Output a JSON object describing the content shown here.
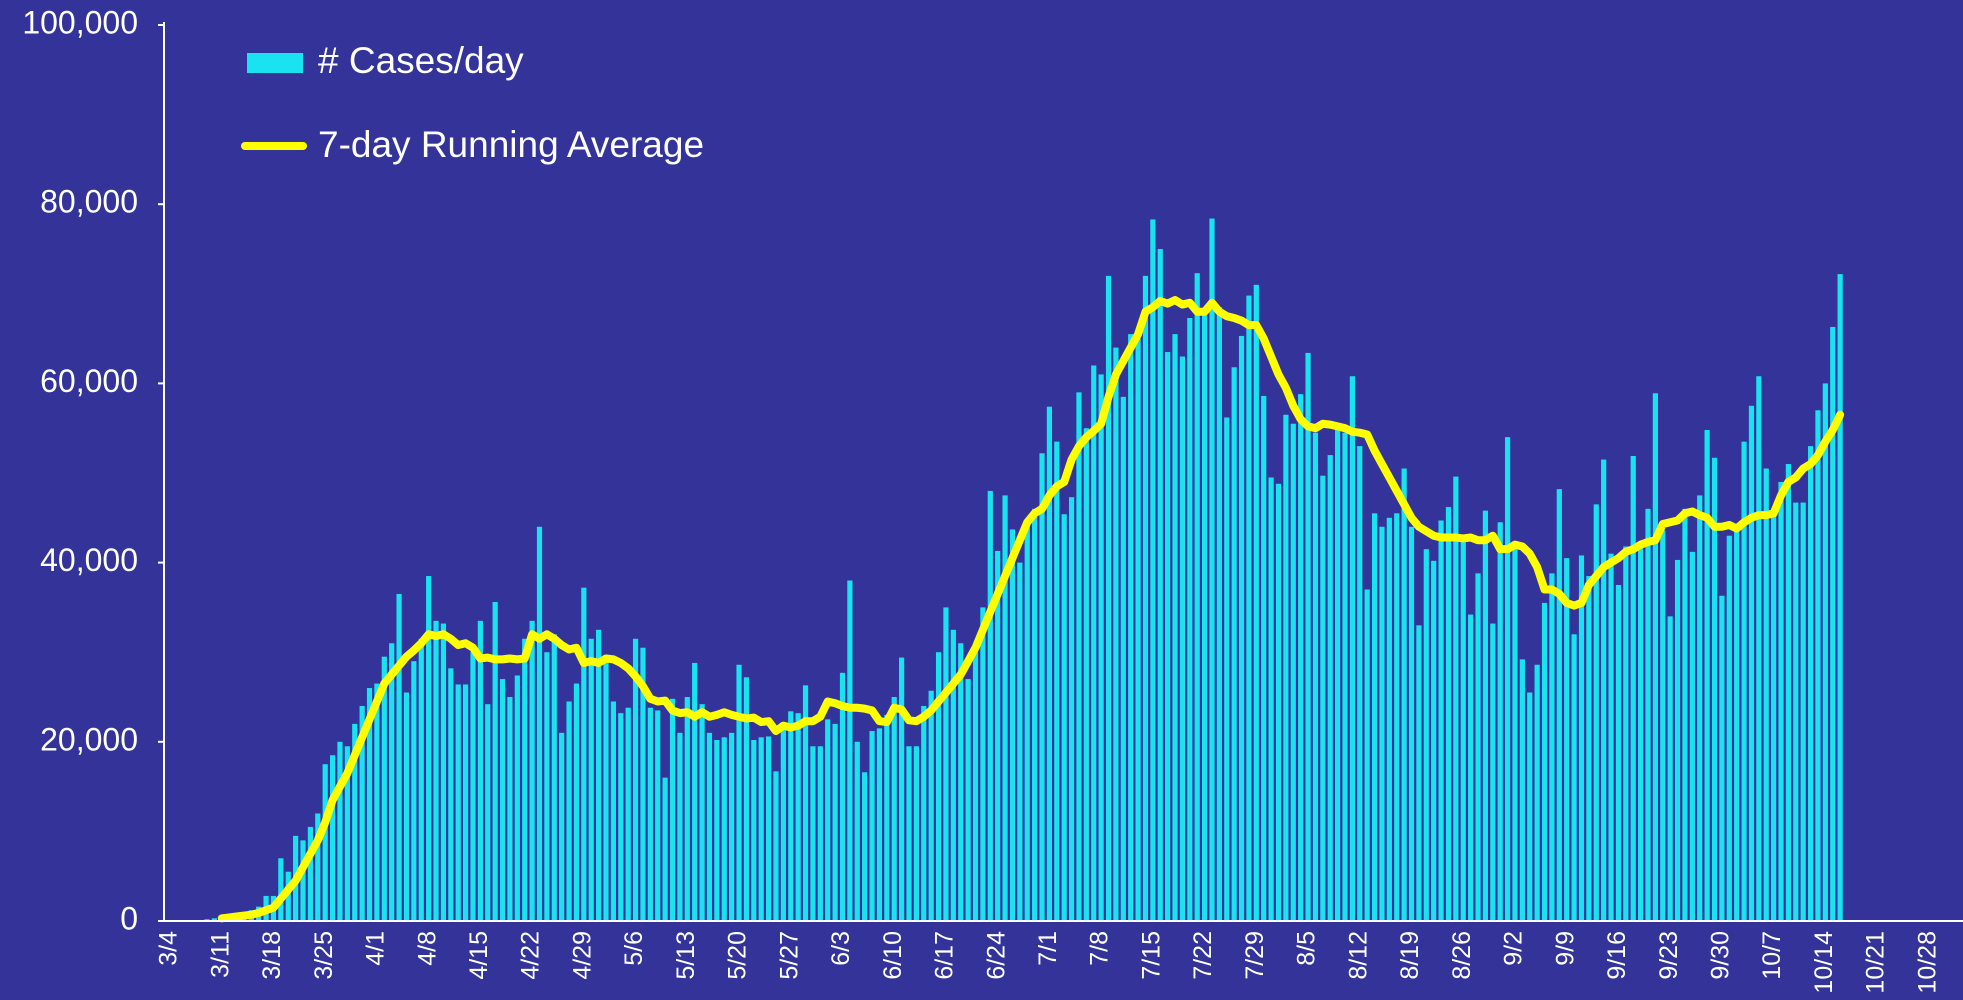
{
  "chart_data": {
    "type": "bar",
    "categories": [
      "3/4",
      null,
      null,
      null,
      null,
      null,
      null,
      "3/11",
      null,
      null,
      null,
      null,
      null,
      null,
      "3/18",
      null,
      null,
      null,
      null,
      null,
      null,
      "3/25",
      null,
      null,
      null,
      null,
      null,
      null,
      "4/1",
      null,
      null,
      null,
      null,
      null,
      null,
      "4/8",
      null,
      null,
      null,
      null,
      null,
      null,
      "4/15",
      null,
      null,
      null,
      null,
      null,
      null,
      "4/22",
      null,
      null,
      null,
      null,
      null,
      null,
      "4/29",
      null,
      null,
      null,
      null,
      null,
      null,
      "5/6",
      null,
      null,
      null,
      null,
      null,
      null,
      "5/13",
      null,
      null,
      null,
      null,
      null,
      null,
      "5/20",
      null,
      null,
      null,
      null,
      null,
      null,
      "5/27",
      null,
      null,
      null,
      null,
      null,
      null,
      "6/3",
      null,
      null,
      null,
      null,
      null,
      null,
      "6/10",
      null,
      null,
      null,
      null,
      null,
      null,
      "6/17",
      null,
      null,
      null,
      null,
      null,
      null,
      "6/24",
      null,
      null,
      null,
      null,
      null,
      null,
      "7/1",
      null,
      null,
      null,
      null,
      null,
      null,
      "7/8",
      null,
      null,
      null,
      null,
      null,
      null,
      "7/15",
      null,
      null,
      null,
      null,
      null,
      null,
      "7/22",
      null,
      null,
      null,
      null,
      null,
      null,
      "7/29",
      null,
      null,
      null,
      null,
      null,
      null,
      "8/5",
      null,
      null,
      null,
      null,
      null,
      null,
      "8/12",
      null,
      null,
      null,
      null,
      null,
      null,
      "8/19",
      null,
      null,
      null,
      null,
      null,
      null,
      "8/26",
      null,
      null,
      null,
      null,
      null,
      null,
      "9/2",
      null,
      null,
      null,
      null,
      null,
      null,
      "9/9",
      null,
      null,
      null,
      null,
      null,
      null,
      "9/16",
      null,
      null,
      null,
      null,
      null,
      null,
      "9/23",
      null,
      null,
      null,
      null,
      null,
      null,
      "9/30",
      null,
      null,
      null,
      null,
      null,
      null,
      "10/7",
      null,
      null,
      null,
      null,
      null,
      null,
      "10/14",
      null,
      null,
      null,
      null,
      null,
      null,
      "10/21",
      null,
      null,
      null,
      null,
      null,
      null,
      "10/28"
    ],
    "series": [
      {
        "name": "# Cases/day",
        "type": "bar",
        "color": "#19e3ef",
        "values": [
          0,
          0,
          0,
          0,
          100,
          200,
          300,
          400,
          500,
          600,
          900,
          1200,
          1600,
          2800,
          2800,
          7000,
          5500,
          9500,
          9000,
          10500,
          12000,
          17500,
          18500,
          20000,
          19500,
          22000,
          24000,
          26000,
          26500,
          29500,
          31000,
          36500,
          25500,
          29000,
          31500,
          38500,
          33500,
          33200,
          28200,
          26400,
          26400,
          30000,
          33500,
          24200,
          35600,
          27000,
          25000,
          27400,
          31500,
          33500,
          44000,
          30000,
          32000,
          21000,
          24500,
          26500,
          37200,
          31500,
          32500,
          29500,
          24500,
          23200,
          23800,
          31500,
          30500,
          23800,
          23500,
          16000,
          24800,
          21000,
          25000,
          28800,
          24200,
          21000,
          20200,
          20500,
          21000,
          28600,
          27200,
          20200,
          20500,
          20600,
          16700,
          21500,
          23400,
          23200,
          26300,
          19500,
          19500,
          22500,
          22000,
          27700,
          38000,
          20000,
          16600,
          21200,
          21500,
          23000,
          25000,
          29400,
          19500,
          19500,
          24000,
          25700,
          30000,
          35000,
          32500,
          31000,
          27000,
          30000,
          35000,
          48000,
          41300,
          47500,
          43700,
          40000,
          44800,
          46000,
          52200,
          57400,
          53500,
          45400,
          47300,
          59000,
          55000,
          62000,
          61000,
          72000,
          64000,
          58500,
          65500,
          66000,
          72000,
          78300,
          75000,
          63500,
          65500,
          63000,
          67300,
          72300,
          68000,
          78400,
          68500,
          56200,
          61800,
          65300,
          69800,
          71000,
          58600,
          49500,
          48800,
          56500,
          55500,
          58800,
          63400,
          54500,
          49700,
          52000,
          55000,
          54500,
          60800,
          53000,
          37000,
          45500,
          44000,
          45000,
          45500,
          50500,
          44000,
          33000,
          41500,
          40200,
          44700,
          46200,
          49600,
          43000,
          34200,
          38800,
          45800,
          33200,
          44500,
          54000,
          42000,
          29200,
          25500,
          28600,
          35500,
          38800,
          48200,
          40500,
          32000,
          40800,
          38500,
          46500,
          51500,
          41000,
          37500,
          41800,
          51900,
          42000,
          46000,
          58900,
          43600,
          34000,
          40300,
          46000,
          41200,
          47500,
          54800,
          51700,
          36300,
          43000,
          43500,
          53500,
          57500,
          60800,
          50500,
          45500,
          49000,
          51000,
          46700,
          46700,
          53000,
          57000,
          60000,
          66300,
          72200,
          null,
          null,
          null,
          null,
          null,
          null,
          null,
          null,
          null,
          null,
          null,
          null
        ]
      },
      {
        "name": "7-day Running Average",
        "type": "line",
        "color": "#ffff00",
        "values": [
          null,
          null,
          null,
          null,
          null,
          null,
          null,
          300,
          400,
          500,
          600,
          700,
          900,
          1200,
          1500,
          2500,
          3500,
          4500,
          6000,
          7500,
          9000,
          11000,
          13500,
          15000,
          16500,
          18500,
          20500,
          22500,
          24500,
          26500,
          27500,
          28500,
          29500,
          30200,
          31000,
          32000,
          31800,
          32000,
          31500,
          30800,
          31000,
          30500,
          29300,
          29400,
          29200,
          29200,
          29300,
          29200,
          29300,
          32000,
          31500,
          32000,
          31500,
          30800,
          30300,
          30500,
          28800,
          29000,
          28800,
          29300,
          29200,
          28800,
          28200,
          27300,
          26200,
          24800,
          24500,
          24600,
          23500,
          23200,
          23300,
          22800,
          23300,
          22800,
          23000,
          23300,
          23000,
          22800,
          22600,
          22700,
          22200,
          22300,
          21200,
          21800,
          21600,
          21800,
          22300,
          22300,
          22800,
          24500,
          24300,
          24000,
          23800,
          23800,
          23700,
          23500,
          22300,
          22200,
          23800,
          23600,
          22400,
          22300,
          22800,
          23500,
          24500,
          25500,
          26500,
          27500,
          29000,
          30500,
          32500,
          34500,
          36500,
          38500,
          40500,
          42500,
          44500,
          45500,
          46000,
          47500,
          48500,
          49000,
          51500,
          53000,
          54000,
          54700,
          55500,
          58500,
          61000,
          62500,
          64000,
          65500,
          68000,
          68500,
          69200,
          68900,
          69300,
          68800,
          69000,
          68000,
          68000,
          69000,
          68000,
          67500,
          67300,
          67000,
          66500,
          66500,
          65000,
          63000,
          61000,
          59500,
          57500,
          56000,
          55200,
          55000,
          55500,
          55400,
          55200,
          55000,
          54600,
          54500,
          54300,
          52500,
          51000,
          49500,
          48000,
          46500,
          45000,
          44000,
          43500,
          43000,
          42800,
          42800,
          42800,
          42700,
          42800,
          42500,
          42500,
          43000,
          41500,
          41500,
          42000,
          41800,
          41000,
          39500,
          37000,
          37000,
          36500,
          35500,
          35200,
          35500,
          37500,
          38500,
          39500,
          40000,
          40500,
          41200,
          41500,
          42000,
          42300,
          42500,
          44300,
          44500,
          44700,
          45500,
          45700,
          45300,
          45000,
          44000,
          44000,
          44200,
          43800,
          44500,
          45000,
          45300,
          45300,
          45500,
          47500,
          49000,
          49500,
          50500,
          51000,
          52000,
          53500,
          54800,
          56500,
          null,
          null,
          null,
          null,
          null,
          null,
          null,
          null,
          null,
          null,
          null,
          null
        ]
      }
    ],
    "ylim": [
      0,
      100000
    ],
    "yticks": [
      0,
      {
        "value": 20000,
        "label": "20,000"
      },
      {
        "value": 40000,
        "label": "40,000"
      },
      {
        "value": 60000,
        "label": "60,000"
      },
      {
        "value": 80000,
        "label": "80,000"
      },
      {
        "value": 100000,
        "label": "100,000"
      }
    ],
    "grid": false,
    "legend": "upper left"
  }
}
